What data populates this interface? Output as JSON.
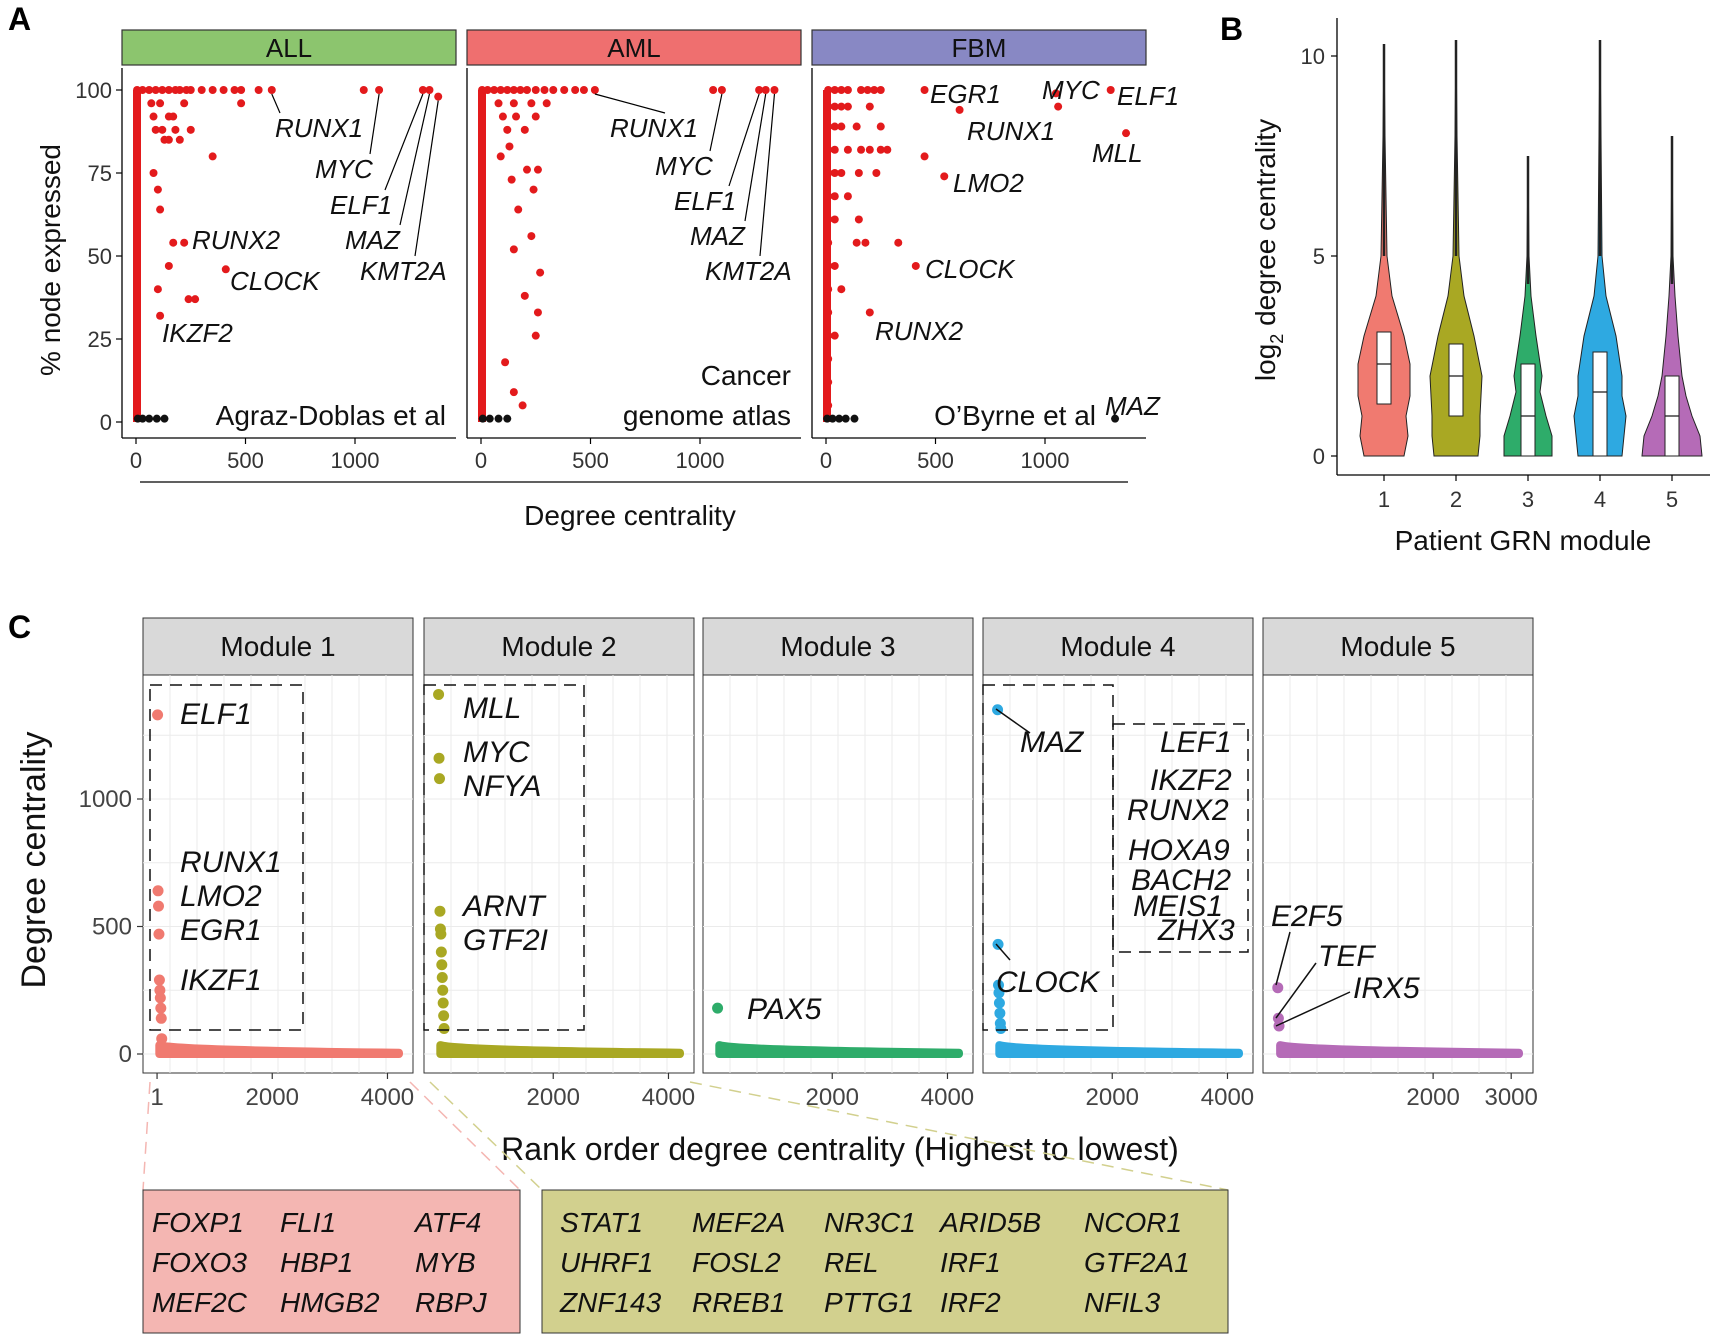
{
  "panel_labels": {
    "a": "A",
    "b": "B",
    "c": "C"
  },
  "panel_a": {
    "ylabel": "% node expressed",
    "xlabel": "Degree centrality",
    "yticks": [
      "0",
      "25",
      "50",
      "75",
      "100"
    ],
    "xticks": [
      "0",
      "500",
      "1000"
    ],
    "facets": [
      {
        "name": "ALL",
        "color": "#8cc56e",
        "source_lines": [
          "Agraz-Doblas et al"
        ],
        "highlight_color": "#e31a1c",
        "points": [
          {
            "x": 5,
            "y": 100
          },
          {
            "x": 30,
            "y": 100
          },
          {
            "x": 60,
            "y": 100
          },
          {
            "x": 90,
            "y": 100
          },
          {
            "x": 120,
            "y": 100
          },
          {
            "x": 150,
            "y": 100
          },
          {
            "x": 180,
            "y": 100
          },
          {
            "x": 200,
            "y": 100
          },
          {
            "x": 230,
            "y": 100
          },
          {
            "x": 250,
            "y": 100
          },
          {
            "x": 300,
            "y": 100
          },
          {
            "x": 350,
            "y": 100
          },
          {
            "x": 400,
            "y": 100
          },
          {
            "x": 450,
            "y": 100
          },
          {
            "x": 480,
            "y": 100
          },
          {
            "x": 560,
            "y": 100
          },
          {
            "x": 620,
            "y": 100
          },
          {
            "x": 1040,
            "y": 100
          },
          {
            "x": 1110,
            "y": 100
          },
          {
            "x": 1310,
            "y": 100
          },
          {
            "x": 1340,
            "y": 100
          },
          {
            "x": 1380,
            "y": 98
          },
          {
            "x": 70,
            "y": 96
          },
          {
            "x": 110,
            "y": 96
          },
          {
            "x": 220,
            "y": 96
          },
          {
            "x": 480,
            "y": 96
          },
          {
            "x": 80,
            "y": 92
          },
          {
            "x": 150,
            "y": 92
          },
          {
            "x": 170,
            "y": 92
          },
          {
            "x": 90,
            "y": 88
          },
          {
            "x": 120,
            "y": 88
          },
          {
            "x": 180,
            "y": 88
          },
          {
            "x": 250,
            "y": 88
          },
          {
            "x": 130,
            "y": 85
          },
          {
            "x": 150,
            "y": 85
          },
          {
            "x": 200,
            "y": 85
          },
          {
            "x": 350,
            "y": 80
          },
          {
            "x": 80,
            "y": 75
          },
          {
            "x": 100,
            "y": 70
          },
          {
            "x": 110,
            "y": 64
          },
          {
            "x": 170,
            "y": 54
          },
          {
            "x": 220,
            "y": 54
          },
          {
            "x": 150,
            "y": 47
          },
          {
            "x": 410,
            "y": 46
          },
          {
            "x": 100,
            "y": 40
          },
          {
            "x": 240,
            "y": 37
          },
          {
            "x": 270,
            "y": 37
          },
          {
            "x": 110,
            "y": 32
          }
        ],
        "other_points": [
          {
            "x": 8,
            "y": 1
          },
          {
            "x": 30,
            "y": 1
          },
          {
            "x": 60,
            "y": 1
          },
          {
            "x": 95,
            "y": 1
          },
          {
            "x": 130,
            "y": 1
          }
        ],
        "labels": [
          {
            "text": "RUNX1",
            "x": 620,
            "y": 100
          },
          {
            "text": "MYC",
            "x": 1110,
            "y": 100
          },
          {
            "text": "ELF1",
            "x": 1310,
            "y": 100
          },
          {
            "text": "MAZ",
            "x": 1340,
            "y": 100
          },
          {
            "text": "KMT2A",
            "x": 1380,
            "y": 98
          },
          {
            "text": "RUNX2",
            "x": 220,
            "y": 54
          },
          {
            "text": "CLOCK",
            "x": 410,
            "y": 46
          },
          {
            "text": "IKZF2",
            "x": 110,
            "y": 32
          }
        ]
      },
      {
        "name": "AML",
        "color": "#ef6f6f",
        "source_lines": [
          "Cancer",
          "genome atlas"
        ],
        "highlight_color": "#e31a1c",
        "points": [
          {
            "x": 5,
            "y": 100
          },
          {
            "x": 30,
            "y": 100
          },
          {
            "x": 60,
            "y": 100
          },
          {
            "x": 90,
            "y": 100
          },
          {
            "x": 120,
            "y": 100
          },
          {
            "x": 150,
            "y": 100
          },
          {
            "x": 180,
            "y": 100
          },
          {
            "x": 210,
            "y": 100
          },
          {
            "x": 250,
            "y": 100
          },
          {
            "x": 290,
            "y": 100
          },
          {
            "x": 330,
            "y": 100
          },
          {
            "x": 380,
            "y": 100
          },
          {
            "x": 430,
            "y": 100
          },
          {
            "x": 470,
            "y": 100
          },
          {
            "x": 520,
            "y": 100
          },
          {
            "x": 1060,
            "y": 100
          },
          {
            "x": 1100,
            "y": 100
          },
          {
            "x": 1270,
            "y": 100
          },
          {
            "x": 1300,
            "y": 100
          },
          {
            "x": 1340,
            "y": 100
          },
          {
            "x": 80,
            "y": 96
          },
          {
            "x": 150,
            "y": 96
          },
          {
            "x": 230,
            "y": 96
          },
          {
            "x": 300,
            "y": 96
          },
          {
            "x": 100,
            "y": 92
          },
          {
            "x": 160,
            "y": 92
          },
          {
            "x": 250,
            "y": 92
          },
          {
            "x": 120,
            "y": 88
          },
          {
            "x": 200,
            "y": 88
          },
          {
            "x": 130,
            "y": 83
          },
          {
            "x": 90,
            "y": 80
          },
          {
            "x": 210,
            "y": 76
          },
          {
            "x": 260,
            "y": 76
          },
          {
            "x": 140,
            "y": 73
          },
          {
            "x": 240,
            "y": 70
          },
          {
            "x": 170,
            "y": 64
          },
          {
            "x": 230,
            "y": 56
          },
          {
            "x": 150,
            "y": 52
          },
          {
            "x": 270,
            "y": 45
          },
          {
            "x": 200,
            "y": 38
          },
          {
            "x": 260,
            "y": 33
          },
          {
            "x": 250,
            "y": 26
          },
          {
            "x": 110,
            "y": 18
          },
          {
            "x": 150,
            "y": 9
          },
          {
            "x": 190,
            "y": 5
          }
        ],
        "other_points": [
          {
            "x": 8,
            "y": 1
          },
          {
            "x": 40,
            "y": 1
          },
          {
            "x": 80,
            "y": 1
          },
          {
            "x": 120,
            "y": 1
          }
        ],
        "labels": [
          {
            "text": "RUNX1",
            "x": 520,
            "y": 100
          },
          {
            "text": "MYC",
            "x": 1100,
            "y": 100
          },
          {
            "text": "ELF1",
            "x": 1270,
            "y": 100
          },
          {
            "text": "MAZ",
            "x": 1300,
            "y": 100
          },
          {
            "text": "KMT2A",
            "x": 1340,
            "y": 100
          }
        ]
      },
      {
        "name": "FBM",
        "color": "#8888c4",
        "source_lines": [
          "O’Byrne et al"
        ],
        "highlight_color": "#e31a1c",
        "points": [
          {
            "x": 10,
            "y": 100
          },
          {
            "x": 40,
            "y": 100
          },
          {
            "x": 70,
            "y": 100
          },
          {
            "x": 100,
            "y": 100
          },
          {
            "x": 160,
            "y": 100
          },
          {
            "x": 190,
            "y": 100
          },
          {
            "x": 220,
            "y": 100
          },
          {
            "x": 250,
            "y": 100
          },
          {
            "x": 450,
            "y": 100
          },
          {
            "x": 1050,
            "y": 99
          },
          {
            "x": 1300,
            "y": 100
          },
          {
            "x": 610,
            "y": 94
          },
          {
            "x": 1060,
            "y": 95
          },
          {
            "x": 1370,
            "y": 87
          },
          {
            "x": 10,
            "y": 95
          },
          {
            "x": 40,
            "y": 95
          },
          {
            "x": 70,
            "y": 95
          },
          {
            "x": 100,
            "y": 95
          },
          {
            "x": 200,
            "y": 95
          },
          {
            "x": 10,
            "y": 89
          },
          {
            "x": 40,
            "y": 89
          },
          {
            "x": 70,
            "y": 89
          },
          {
            "x": 140,
            "y": 89
          },
          {
            "x": 250,
            "y": 89
          },
          {
            "x": 10,
            "y": 82
          },
          {
            "x": 40,
            "y": 82
          },
          {
            "x": 100,
            "y": 82
          },
          {
            "x": 160,
            "y": 82
          },
          {
            "x": 200,
            "y": 82
          },
          {
            "x": 250,
            "y": 82
          },
          {
            "x": 280,
            "y": 82
          },
          {
            "x": 450,
            "y": 80
          },
          {
            "x": 10,
            "y": 75
          },
          {
            "x": 40,
            "y": 75
          },
          {
            "x": 70,
            "y": 75
          },
          {
            "x": 150,
            "y": 75
          },
          {
            "x": 230,
            "y": 75
          },
          {
            "x": 540,
            "y": 74
          },
          {
            "x": 10,
            "y": 68
          },
          {
            "x": 40,
            "y": 68
          },
          {
            "x": 100,
            "y": 68
          },
          {
            "x": 10,
            "y": 61
          },
          {
            "x": 40,
            "y": 61
          },
          {
            "x": 150,
            "y": 61
          },
          {
            "x": 10,
            "y": 54
          },
          {
            "x": 140,
            "y": 54
          },
          {
            "x": 180,
            "y": 54
          },
          {
            "x": 330,
            "y": 54
          },
          {
            "x": 10,
            "y": 47
          },
          {
            "x": 40,
            "y": 47
          },
          {
            "x": 410,
            "y": 47
          },
          {
            "x": 10,
            "y": 40
          },
          {
            "x": 70,
            "y": 40
          },
          {
            "x": 10,
            "y": 33
          },
          {
            "x": 200,
            "y": 33
          },
          {
            "x": 10,
            "y": 26
          },
          {
            "x": 40,
            "y": 26
          },
          {
            "x": 10,
            "y": 19
          },
          {
            "x": 10,
            "y": 12
          },
          {
            "x": 10,
            "y": 5
          }
        ],
        "other_points": [
          {
            "x": 5,
            "y": 1
          },
          {
            "x": 30,
            "y": 1
          },
          {
            "x": 60,
            "y": 1
          },
          {
            "x": 90,
            "y": 1
          },
          {
            "x": 130,
            "y": 1
          },
          {
            "x": 1320,
            "y": 1
          }
        ],
        "labels": [
          {
            "text": "EGR1",
            "x": 450,
            "y": 100
          },
          {
            "text": "MYC",
            "x": 1050,
            "y": 99
          },
          {
            "text": "ELF1",
            "x": 1300,
            "y": 100
          },
          {
            "text": "RUNX1",
            "x": 610,
            "y": 94
          },
          {
            "text": "MLL",
            "x": 1370,
            "y": 87
          },
          {
            "text": "LMO2",
            "x": 540,
            "y": 74
          },
          {
            "text": "CLOCK",
            "x": 410,
            "y": 47
          },
          {
            "text": "RUNX2",
            "x": 200,
            "y": 33
          },
          {
            "text": "MAZ",
            "x": 1320,
            "y": 1
          }
        ]
      }
    ]
  },
  "panel_b": {
    "ylabel_main": "log",
    "ylabel_sub": "2",
    "ylabel_rest": " degree centrality",
    "xlabel": "Patient GRN module",
    "yticks": [
      "0",
      "5",
      "10"
    ],
    "categories": [
      "1",
      "2",
      "3",
      "4",
      "5"
    ],
    "colors": [
      "#f07a70",
      "#a9a823",
      "#2eac6a",
      "#2ea9e1",
      "#b56bb7"
    ]
  },
  "panel_c": {
    "ylabel": "Degree centrality",
    "xlabel": "Rank order degree centrality (Highest to lowest)",
    "yticks": [
      "0",
      "500",
      "1000"
    ],
    "modules": [
      {
        "name": "Module 1",
        "color": "#f07a70",
        "xticks": [
          "1",
          "2000",
          "4000"
        ],
        "n": 4200,
        "points": [
          1330,
          640,
          580,
          470,
          290,
          250,
          220,
          180,
          140,
          60
        ],
        "labels": [
          "ELF1",
          "RUNX1",
          "LMO2",
          "EGR1",
          "IKZF1"
        ]
      },
      {
        "name": "Module 2",
        "color": "#a9a823",
        "xticks": [
          "2000",
          "4000"
        ],
        "n": 4200,
        "points": [
          1410,
          1160,
          1080,
          560,
          490,
          470,
          400,
          350,
          300,
          250,
          200,
          150,
          100
        ],
        "labels": [
          "MLL",
          "MYC",
          "NFYA",
          "ARNT",
          "GTF2I"
        ]
      },
      {
        "name": "Module 3",
        "color": "#2eac6a",
        "xticks": [
          "2000",
          "4000"
        ],
        "n": 4200,
        "points": [
          180
        ],
        "labels": [
          "PAX5"
        ]
      },
      {
        "name": "Module 4",
        "color": "#2ea9e1",
        "xticks": [
          "2000",
          "4000"
        ],
        "n": 4200,
        "points": [
          1350,
          430,
          270,
          240,
          200,
          160,
          120,
          100
        ],
        "labels": [
          "MAZ",
          "LEF1",
          "IKZF2",
          "RUNX2",
          "HOXA9",
          "BACH2",
          "MEIS1",
          "ZHX3",
          "CLOCK"
        ]
      },
      {
        "name": "Module 5",
        "color": "#b56bb7",
        "xticks": [
          "2000",
          "3000"
        ],
        "n": 3100,
        "points": [
          260,
          140,
          110
        ],
        "labels": [
          "E2F5",
          "TEF",
          "IRX5"
        ]
      }
    ],
    "gene_box_1": {
      "color": "#f4b6b2",
      "columns": [
        [
          "FOXP1",
          "FOXO3",
          "MEF2C"
        ],
        [
          "FLI1",
          "HBP1",
          "HMGB2"
        ],
        [
          "ATF4",
          "MYB",
          "RBPJ"
        ]
      ]
    },
    "gene_box_2": {
      "color": "#d2d08e",
      "columns": [
        [
          "STAT1",
          "UHRF1",
          "ZNF143"
        ],
        [
          "MEF2A",
          "FOSL2",
          "RREB1"
        ],
        [
          "NR3C1",
          "REL",
          "PTTG1"
        ],
        [
          "ARID5B",
          "IRF1",
          "IRF2"
        ],
        [
          "NCOR1",
          "GTF2A1",
          "NFIL3"
        ]
      ]
    }
  }
}
